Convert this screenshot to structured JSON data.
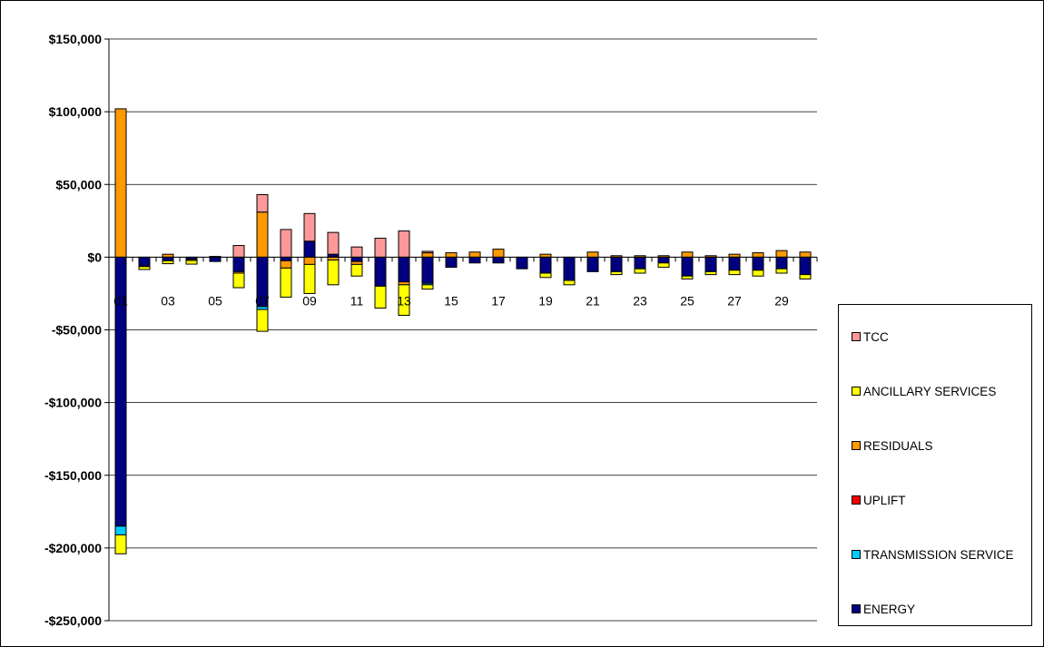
{
  "chart_data": {
    "type": "bar",
    "stacked": true,
    "categories": [
      "01",
      "02",
      "03",
      "04",
      "05",
      "06",
      "07",
      "08",
      "09",
      "10",
      "11",
      "12",
      "13",
      "14",
      "15",
      "16",
      "17",
      "18",
      "19",
      "20",
      "21",
      "22",
      "23",
      "24",
      "25",
      "26",
      "27",
      "28",
      "29",
      "30"
    ],
    "x_tick_labels_shown": [
      "01",
      "03",
      "05",
      "07",
      "09",
      "11",
      "13",
      "15",
      "17",
      "19",
      "21",
      "23",
      "25",
      "27",
      "29"
    ],
    "ylim": [
      -250000,
      150000
    ],
    "yticks": [
      150000,
      100000,
      50000,
      0,
      -50000,
      -100000,
      -150000,
      -200000,
      -250000
    ],
    "ytick_labels": [
      "$150,000",
      "$100,000",
      "$50,000",
      "$0",
      "-$50,000",
      "-$100,000",
      "-$150,000",
      "-$200,000",
      "-$250,000"
    ],
    "grid": "horizontal",
    "legend_position": "right",
    "series": [
      {
        "name": "ENERGY",
        "color": "#000080",
        "values": [
          -185000,
          -6000,
          -2500,
          -1500,
          -3000,
          -10000,
          -34000,
          -2500,
          11000,
          2000,
          -3000,
          -20000,
          -17000,
          -18000,
          -7000,
          -4000,
          -4000,
          -8000,
          -11000,
          -16000,
          -10000,
          -10000,
          -8000,
          -4000,
          -13000,
          -10000,
          -9000,
          -9000,
          -8000,
          -12000
        ]
      },
      {
        "name": "TRANSMISSION SERVICE",
        "color": "#00CCFF",
        "values": [
          -6000,
          0,
          0,
          0,
          0,
          0,
          -2000,
          0,
          0,
          0,
          0,
          0,
          0,
          -1000,
          0,
          0,
          0,
          0,
          0,
          0,
          0,
          0,
          0,
          0,
          0,
          0,
          0,
          0,
          0,
          0
        ]
      },
      {
        "name": "UPLIFT",
        "color": "#FF0000",
        "values": [
          0,
          0,
          0,
          0,
          0,
          0,
          0,
          0,
          0,
          0,
          0,
          0,
          0,
          0,
          0,
          0,
          0,
          0,
          0,
          0,
          0,
          0,
          0,
          0,
          0,
          0,
          0,
          0,
          0,
          0
        ]
      },
      {
        "name": "RESIDUALS",
        "color": "#FF9900",
        "values": [
          102000,
          -500,
          2000,
          -800,
          500,
          -1000,
          31000,
          -5000,
          -5000,
          -2000,
          -2000,
          0,
          -2000,
          3000,
          3000,
          3500,
          5500,
          0,
          2000,
          0,
          3500,
          1000,
          1000,
          1000,
          3500,
          1000,
          2000,
          3000,
          4500,
          3500
        ]
      },
      {
        "name": "ANCILLARY SERVICES",
        "color": "#FFFF00",
        "values": [
          -13000,
          -2000,
          -2000,
          -2500,
          0,
          -10000,
          -15000,
          -20000,
          -20000,
          -17000,
          -8000,
          -15000,
          -21000,
          -3000,
          0,
          0,
          0,
          0,
          -3000,
          -3000,
          0,
          -2000,
          -3000,
          -3000,
          -2000,
          -2000,
          -3000,
          -4000,
          -3000,
          -3000
        ]
      },
      {
        "name": "TCC",
        "color": "#FF9999",
        "values": [
          0,
          0,
          0,
          0,
          0,
          8000,
          12000,
          19000,
          19000,
          15000,
          7000,
          13000,
          18000,
          1000,
          0,
          0,
          0,
          0,
          0,
          0,
          0,
          0,
          0,
          0,
          0,
          0,
          0,
          0,
          0,
          0
        ]
      }
    ]
  },
  "legend": {
    "items": [
      {
        "label": "TCC",
        "color": "#FF9999"
      },
      {
        "label": "ANCILLARY SERVICES",
        "color": "#FFFF00"
      },
      {
        "label": "RESIDUALS",
        "color": "#FF9900"
      },
      {
        "label": "UPLIFT",
        "color": "#FF0000"
      },
      {
        "label": "TRANSMISSION SERVICE",
        "color": "#00CCFF"
      },
      {
        "label": "ENERGY",
        "color": "#000080"
      }
    ]
  }
}
